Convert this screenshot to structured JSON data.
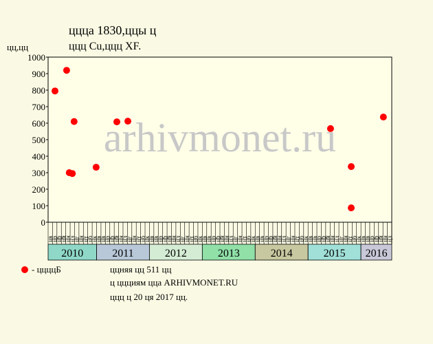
{
  "chart_data": {
    "type": "scatter",
    "title": "ццца 1830,ццы ц",
    "subtitle": "ццц Cu,ццц XF.",
    "y_label": "цц,цц",
    "watermark": "arhivmonet.ru",
    "ylim": [
      0,
      1000
    ],
    "yticks": [
      0,
      100,
      200,
      300,
      400,
      500,
      600,
      700,
      800,
      900,
      1000
    ],
    "xlim": [
      0,
      78
    ],
    "x_groups": [
      {
        "label": "2010",
        "color": "#8fd8c8",
        "categories": [
          "цв",
          "цр",
          "цр",
          "цй",
          "цн",
          "цл",
          "цг",
          "цн",
          "цт",
          "цб",
          "цк"
        ]
      },
      {
        "label": "2011",
        "color": "#b8c8d8",
        "categories": [
          "цв",
          "цв",
          "цр",
          "цр",
          "цй",
          "цн",
          "цл",
          "цг",
          "цн",
          "цт",
          "цб",
          "цк"
        ]
      },
      {
        "label": "2012",
        "color": "#d4ecd4",
        "categories": [
          "цв",
          "цв",
          "цр",
          "цр",
          "цй",
          "цн",
          "цл",
          "цг",
          "цн",
          "цт",
          "цб",
          "цк"
        ]
      },
      {
        "label": "2013",
        "color": "#90e0a8",
        "categories": [
          "цв",
          "цв",
          "цр",
          "цр",
          "цй",
          "цн",
          "цл",
          "цг",
          "цн",
          "цт",
          "цб",
          "цк"
        ]
      },
      {
        "label": "2014",
        "color": "#c8c8a0",
        "categories": [
          "цв",
          "цв",
          "цр",
          "цр",
          "цй",
          "цн",
          "цл",
          "цг",
          "цн",
          "цт",
          "цб",
          "цк"
        ]
      },
      {
        "label": "2015",
        "color": "#a0e0d8",
        "categories": [
          "цв",
          "цв",
          "цр",
          "цр",
          "цй",
          "цн",
          "цл",
          "цг",
          "цн",
          "цт",
          "цб",
          "цк"
        ]
      },
      {
        "label": "2016",
        "color": "#c8c8d8",
        "categories": [
          "цв",
          "цв",
          "цр",
          "цр",
          "цй",
          "цн",
          "цл"
        ]
      }
    ],
    "series": [
      {
        "name": "- ццццБ",
        "color": "#ff0000",
        "x": [
          1.56,
          4.2,
          4.8,
          5.5,
          5.9,
          10.9,
          15.6,
          18.1,
          64.1,
          68.8,
          68.8,
          76.1
        ],
        "values": [
          795,
          920,
          300,
          295,
          610,
          333,
          608,
          612,
          567,
          337,
          87,
          637
        ]
      }
    ],
    "notes": [
      "ццняя цц 511 цц",
      "ц ццциям цца ARHIVMONET.RU",
      "ццц ц 20 ця 2017 цц."
    ]
  }
}
